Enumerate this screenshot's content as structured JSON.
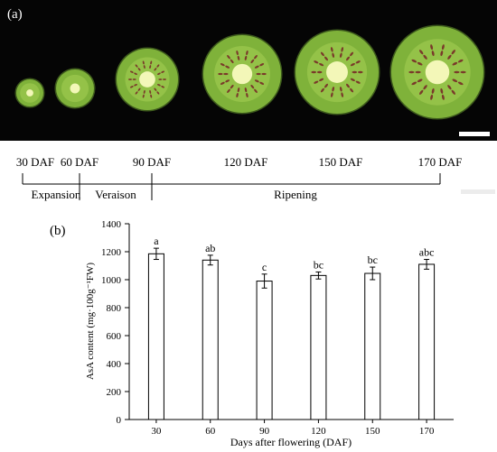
{
  "panel_a": {
    "label": "(a)",
    "stages_dap": [
      "30 DAF",
      "60 DAF",
      "90 DAF",
      "120 DAF",
      "150 DAF",
      "170 DAF"
    ],
    "phases": [
      "Expansion",
      "Veraison",
      "Ripening"
    ]
  },
  "panel_b": {
    "label": "(b)"
  },
  "colors": {
    "fruit_flesh": "#7fb23a",
    "fruit_core": "#f3f7b8",
    "seed": "#7a3a2a",
    "background": "#050505",
    "bar_fill": "#ffffff",
    "bar_stroke": "#000000"
  },
  "chart_data": {
    "type": "bar",
    "categories": [
      "30",
      "60",
      "90",
      "120",
      "150",
      "170"
    ],
    "values": [
      1185,
      1140,
      990,
      1030,
      1045,
      1110
    ],
    "errors": [
      40,
      35,
      50,
      25,
      45,
      35
    ],
    "significance_labels": [
      "a",
      "ab",
      "c",
      "bc",
      "bc",
      "abc"
    ],
    "xlabel": "Days after flowering (DAF)",
    "ylabel": "AsA content (mg·100g⁻¹FW)",
    "ylim": [
      0,
      1400
    ],
    "yticks": [
      "0",
      "200",
      "400",
      "600",
      "800",
      "1000",
      "1200",
      "1400"
    ],
    "grid": false
  }
}
